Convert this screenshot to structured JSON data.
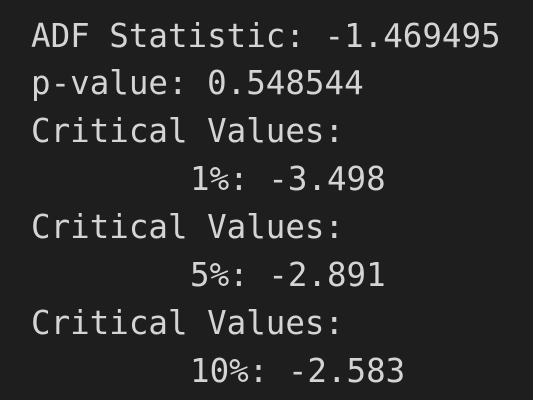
{
  "output": {
    "lines": [
      "ADF Statistic: -1.469495",
      "p-value: 0.548544",
      "Critical Values:",
      "1%: -3.498",
      "Critical Values:",
      "5%: -2.891",
      "Critical Values:",
      "10%: -2.583"
    ]
  }
}
